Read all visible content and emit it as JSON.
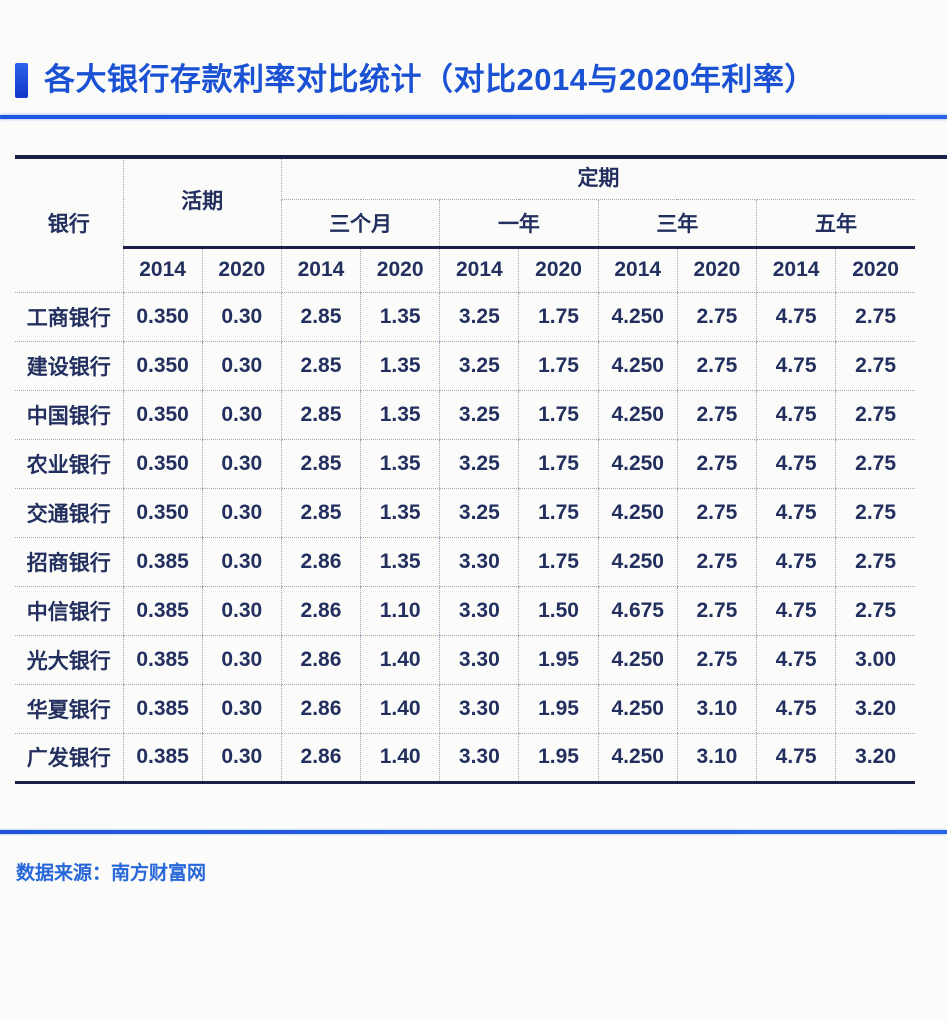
{
  "page": {
    "title": "各大银行存款利率对比统计（对比2014与2020年利率）",
    "source": "数据来源：南方财富网"
  },
  "colors": {
    "title_blue": "#1b52d4",
    "accent_line_blue": "#1e57e0",
    "table_line_navy": "#1a1f47",
    "table_text_navy": "#23305f",
    "grid_dot_gray": "#a3a9b8",
    "footer_text_blue": "#2767d9"
  },
  "chart_data": {
    "type": "table",
    "title": "各大银行存款利率对比统计（对比2014与2020年利率）",
    "source": "数据来源：南方财富网",
    "header": {
      "bank": "银行",
      "demand": "活期",
      "fixed": "定期",
      "periods": [
        "三个月",
        "一年",
        "三年",
        "五年"
      ],
      "year_2014": "2014",
      "year_2020": "2020"
    },
    "columns_order": [
      "活期2014",
      "活期2020",
      "三个月2014",
      "三个月2020",
      "一年2014",
      "一年2020",
      "三年2014",
      "三年2020",
      "五年2014",
      "五年2020"
    ],
    "rows": [
      {
        "bank": "工商银行",
        "values": [
          "0.350",
          "0.30",
          "2.85",
          "1.35",
          "3.25",
          "1.75",
          "4.250",
          "2.75",
          "4.75",
          "2.75"
        ]
      },
      {
        "bank": "建设银行",
        "values": [
          "0.350",
          "0.30",
          "2.85",
          "1.35",
          "3.25",
          "1.75",
          "4.250",
          "2.75",
          "4.75",
          "2.75"
        ]
      },
      {
        "bank": "中国银行",
        "values": [
          "0.350",
          "0.30",
          "2.85",
          "1.35",
          "3.25",
          "1.75",
          "4.250",
          "2.75",
          "4.75",
          "2.75"
        ]
      },
      {
        "bank": "农业银行",
        "values": [
          "0.350",
          "0.30",
          "2.85",
          "1.35",
          "3.25",
          "1.75",
          "4.250",
          "2.75",
          "4.75",
          "2.75"
        ]
      },
      {
        "bank": "交通银行",
        "values": [
          "0.350",
          "0.30",
          "2.85",
          "1.35",
          "3.25",
          "1.75",
          "4.250",
          "2.75",
          "4.75",
          "2.75"
        ]
      },
      {
        "bank": "招商银行",
        "values": [
          "0.385",
          "0.30",
          "2.86",
          "1.35",
          "3.30",
          "1.75",
          "4.250",
          "2.75",
          "4.75",
          "2.75"
        ]
      },
      {
        "bank": "中信银行",
        "values": [
          "0.385",
          "0.30",
          "2.86",
          "1.10",
          "3.30",
          "1.50",
          "4.675",
          "2.75",
          "4.75",
          "2.75"
        ]
      },
      {
        "bank": "光大银行",
        "values": [
          "0.385",
          "0.30",
          "2.86",
          "1.40",
          "3.30",
          "1.95",
          "4.250",
          "2.75",
          "4.75",
          "3.00"
        ]
      },
      {
        "bank": "华夏银行",
        "values": [
          "0.385",
          "0.30",
          "2.86",
          "1.40",
          "3.30",
          "1.95",
          "4.250",
          "3.10",
          "4.75",
          "3.20"
        ]
      },
      {
        "bank": "广发银行",
        "values": [
          "0.385",
          "0.30",
          "2.86",
          "1.40",
          "3.30",
          "1.95",
          "4.250",
          "3.10",
          "4.75",
          "3.20"
        ]
      }
    ]
  }
}
